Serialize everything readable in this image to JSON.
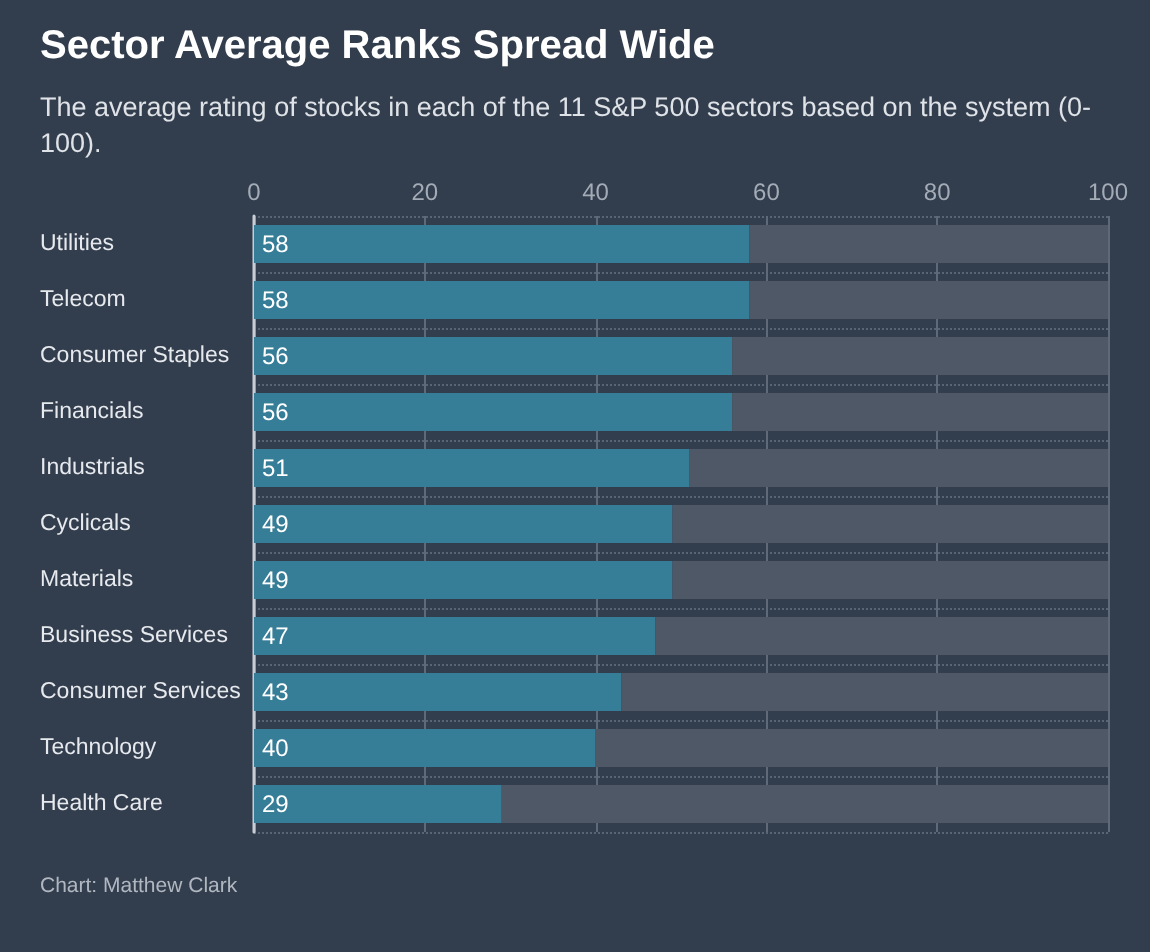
{
  "chart_data": {
    "type": "bar",
    "orientation": "horizontal",
    "stacked": true,
    "title": "Sector Average Ranks Spread Wide",
    "subtitle": "The average rating of stocks in each of the 11 S&P 500 sectors based on the system (0-100).",
    "annotations": [
      "Chart: Matthew Clark"
    ],
    "categories": [
      "Utilities",
      "Telecom",
      "Consumer Staples",
      "Financials",
      "Industrials",
      "Cyclicals",
      "Materials",
      "Business Services",
      "Consumer Services",
      "Technology",
      "Health Care"
    ],
    "series": [
      {
        "color": "#367d98",
        "values": [
          58,
          58,
          56,
          56,
          51,
          49,
          49,
          47,
          43,
          40,
          29
        ],
        "value_labels": [
          "58",
          "58",
          "56",
          "56",
          "51",
          "49",
          "49",
          "47",
          "43",
          "40",
          "29"
        ]
      },
      {
        "color": "#4f5867",
        "values": [
          42,
          42,
          44,
          44,
          49,
          51,
          51,
          53,
          57,
          60,
          71
        ]
      }
    ],
    "xlim": [
      0,
      100
    ],
    "xticks": [
      0,
      20,
      40,
      60,
      80,
      100
    ],
    "grid": true
  }
}
